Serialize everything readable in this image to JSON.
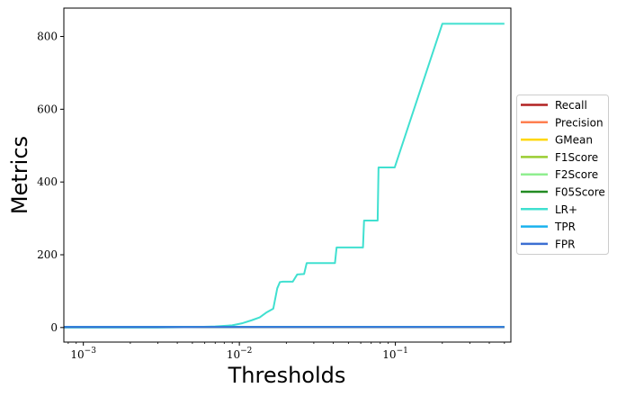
{
  "chart_data": {
    "type": "line",
    "xlabel": "Thresholds",
    "ylabel": "Metrics",
    "xscale": "log",
    "xlim": [
      0.00075,
      0.55
    ],
    "ylim": [
      -40,
      878
    ],
    "x_ticks": [
      {
        "value": 0.001,
        "base": "10",
        "exp": "−3"
      },
      {
        "value": 0.01,
        "base": "10",
        "exp": "−2"
      },
      {
        "value": 0.1,
        "base": "10",
        "exp": "−1"
      }
    ],
    "y_ticks": [
      "0",
      "200",
      "400",
      "600",
      "800"
    ],
    "legend_position": "right, outside",
    "series": [
      {
        "name": "Recall",
        "color": "#b22222",
        "x": [
          0.00075,
          0.5
        ],
        "y": [
          1,
          1
        ]
      },
      {
        "name": "Precision",
        "color": "#ff7f50",
        "x": [
          0.00075,
          0.5
        ],
        "y": [
          1,
          1
        ]
      },
      {
        "name": "GMean",
        "color": "#ffd700",
        "x": [
          0.00075,
          0.5
        ],
        "y": [
          1,
          1
        ]
      },
      {
        "name": "F1Score",
        "color": "#9acd32",
        "x": [
          0.00075,
          0.5
        ],
        "y": [
          1,
          1
        ]
      },
      {
        "name": "F2Score",
        "color": "#90ee90",
        "x": [
          0.00075,
          0.5
        ],
        "y": [
          1,
          1
        ]
      },
      {
        "name": "F05Score",
        "color": "#228b22",
        "x": [
          0.00075,
          0.5
        ],
        "y": [
          1,
          1
        ]
      },
      {
        "name": "LR+",
        "color": "#40e0d0",
        "x": [
          0.00075,
          0.003,
          0.005,
          0.007,
          0.009,
          0.0105,
          0.012,
          0.0135,
          0.015,
          0.0165,
          0.0175,
          0.0182,
          0.019,
          0.022,
          0.0235,
          0.026,
          0.027,
          0.041,
          0.042,
          0.062,
          0.063,
          0.077,
          0.078,
          0.099,
          0.2,
          0.5
        ],
        "y": [
          0,
          0,
          1,
          3,
          6,
          12,
          20,
          28,
          42,
          52,
          108,
          125,
          126,
          126,
          146,
          147,
          177,
          177,
          220,
          220,
          294,
          294,
          440,
          440,
          835,
          835
        ]
      },
      {
        "name": "TPR",
        "color": "#1ab2ee",
        "x": [
          0.00075,
          0.5
        ],
        "y": [
          2,
          2
        ]
      },
      {
        "name": "FPR",
        "color": "#3c6fd2",
        "x": [
          0.00075,
          0.5
        ],
        "y": [
          1,
          1
        ]
      }
    ]
  }
}
